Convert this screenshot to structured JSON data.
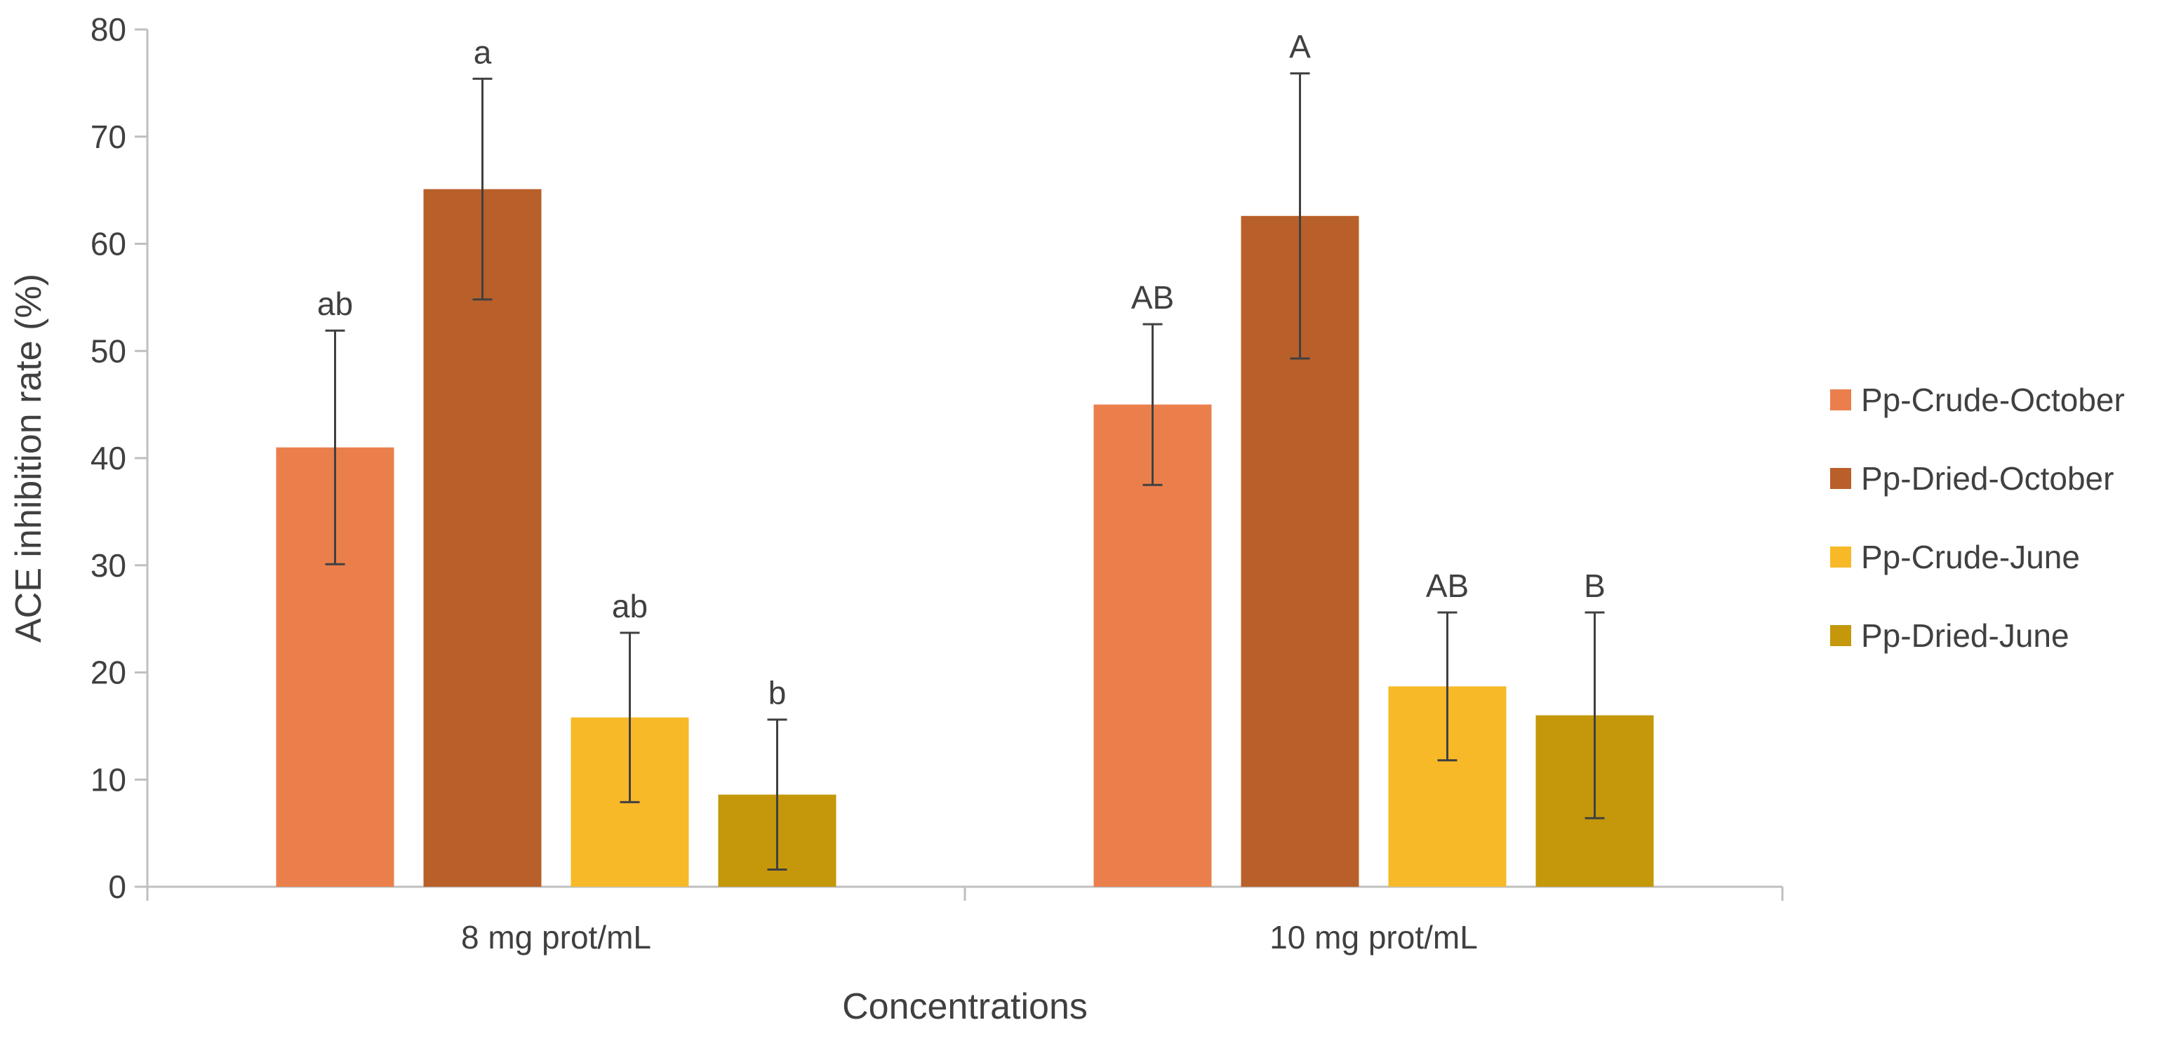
{
  "chart_data": {
    "type": "bar",
    "title": "",
    "xlabel": "Concentrations",
    "ylabel": "ACE inhibition rate (%)",
    "ylim": [
      0,
      80
    ],
    "yticks": [
      0,
      10,
      20,
      30,
      40,
      50,
      60,
      70,
      80
    ],
    "categories": [
      "8 mg prot/mL",
      "10 mg prot/mL"
    ],
    "legend_position": "right",
    "series": [
      {
        "name": "Pp-Crude-October",
        "color": "#ea7f4c",
        "values": [
          41,
          45
        ],
        "errors": [
          10.9,
          7.5
        ],
        "labels": [
          "ab",
          "AB"
        ]
      },
      {
        "name": "Pp-Dried-October",
        "color": "#b9602a",
        "values": [
          65.1,
          62.6
        ],
        "errors": [
          10.3,
          13.3
        ],
        "labels": [
          "a",
          "A"
        ]
      },
      {
        "name": "Pp-Crude-June",
        "color": "#f7b928",
        "values": [
          15.8,
          18.7
        ],
        "errors": [
          7.9,
          6.9
        ],
        "labels": [
          "ab",
          "AB"
        ]
      },
      {
        "name": "Pp-Dried-June",
        "color": "#c4980a",
        "values": [
          8.6,
          16
        ],
        "errors": [
          7,
          9.6
        ],
        "labels": [
          "b",
          "B"
        ]
      }
    ]
  }
}
